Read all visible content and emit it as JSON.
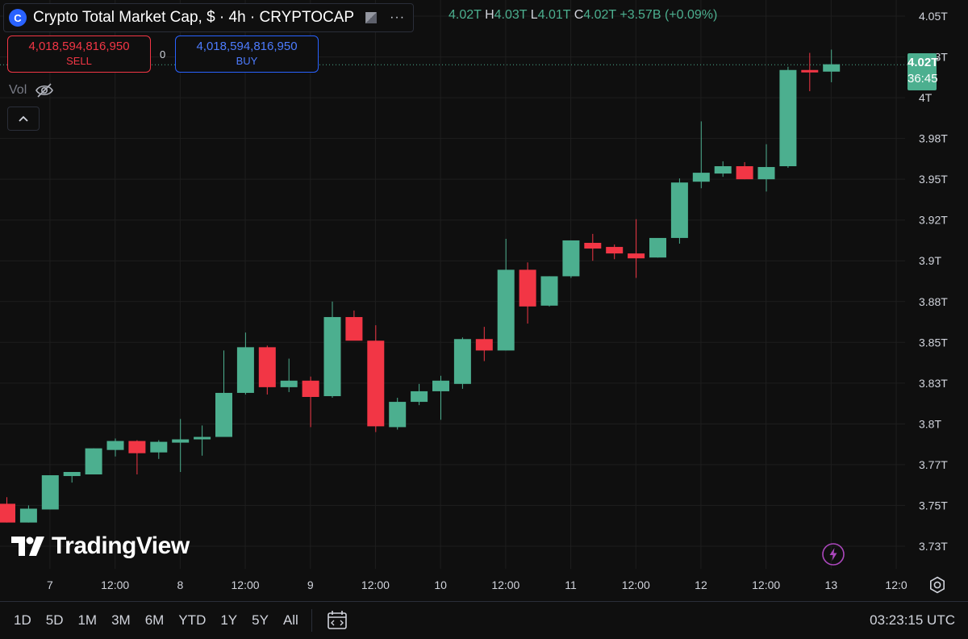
{
  "header": {
    "logo_glyph": "C",
    "title": "Crypto Total Market Cap, $ · 4h · CRYPTOCAP",
    "more_icon": "···",
    "ohlc": {
      "o_label": "",
      "o_value": "4.02T",
      "h_label": "H",
      "h_value": "4.03T",
      "l_label": "L",
      "l_value": "4.01T",
      "c_label": "C",
      "c_value": "4.02T",
      "change": "+3.57B (+0.09%)"
    }
  },
  "trading": {
    "sell_price": "4,018,594,816,950",
    "sell_label": "SELL",
    "spread": "0",
    "buy_price": "4,018,594,816,950",
    "buy_label": "BUY"
  },
  "indicators": {
    "vol_label": "Vol"
  },
  "price_tag": {
    "price": "4.02T",
    "countdown": "36:45"
  },
  "branding": {
    "name": "TradingView"
  },
  "bottom_bar": {
    "ranges": [
      "1D",
      "5D",
      "1M",
      "3M",
      "6M",
      "YTD",
      "1Y",
      "5Y",
      "All"
    ],
    "clock": "03:23:15 UTC"
  },
  "colors": {
    "up": "#4caf8f",
    "down": "#f23645",
    "background": "#0f0f0f",
    "buy": "#2962ff"
  },
  "chart_data": {
    "type": "candlestick",
    "title": "Crypto Total Market Cap, $ · 4h · CRYPTOCAP",
    "unit": "T",
    "y_ticks": [
      "4.05T",
      "4.03T",
      "4T",
      "3.98T",
      "3.95T",
      "3.92T",
      "3.9T",
      "3.88T",
      "3.85T",
      "3.83T",
      "3.8T",
      "3.77T",
      "3.75T",
      "3.73T"
    ],
    "y_tick_values": [
      4.05,
      4.025,
      4.0,
      3.975,
      3.95,
      3.925,
      3.9,
      3.875,
      3.85,
      3.825,
      3.8,
      3.775,
      3.75,
      3.725
    ],
    "ylim": [
      3.7225,
      4.0525
    ],
    "x_ticks": [
      "7",
      "12:00",
      "8",
      "12:00",
      "9",
      "12:00",
      "10",
      "12:00",
      "11",
      "12:00",
      "12",
      "12:00",
      "13",
      "12:0"
    ],
    "x_tick_slot": [
      0.5,
      3.5,
      6.5,
      9.5,
      12.5,
      15.5,
      18.5,
      21.5,
      24.5,
      27.5,
      30.5,
      33.5,
      36.5,
      39.5
    ],
    "last_price": 4.02,
    "grid": true,
    "candles": [
      {
        "o": 3.751,
        "h": 3.755,
        "l": 3.7395,
        "c": 3.7395
      },
      {
        "o": 3.7395,
        "h": 3.75,
        "l": 3.7395,
        "c": 3.748
      },
      {
        "o": 3.7475,
        "h": 3.768,
        "l": 3.7475,
        "c": 3.7685
      },
      {
        "o": 3.768,
        "h": 3.77,
        "l": 3.764,
        "c": 3.7705
      },
      {
        "o": 3.769,
        "h": 3.785,
        "l": 3.769,
        "c": 3.785
      },
      {
        "o": 3.784,
        "h": 3.791,
        "l": 3.78,
        "c": 3.7895
      },
      {
        "o": 3.7895,
        "h": 3.79,
        "l": 3.769,
        "c": 3.782
      },
      {
        "o": 3.7825,
        "h": 3.79,
        "l": 3.7785,
        "c": 3.789
      },
      {
        "o": 3.7885,
        "h": 3.803,
        "l": 3.7705,
        "c": 3.7905
      },
      {
        "o": 3.7905,
        "h": 3.799,
        "l": 3.7805,
        "c": 3.792
      },
      {
        "o": 3.792,
        "h": 3.845,
        "l": 3.792,
        "c": 3.819
      },
      {
        "o": 3.819,
        "h": 3.856,
        "l": 3.818,
        "c": 3.847
      },
      {
        "o": 3.847,
        "h": 3.848,
        "l": 3.818,
        "c": 3.8225
      },
      {
        "o": 3.8225,
        "h": 3.84,
        "l": 3.8195,
        "c": 3.8265
      },
      {
        "o": 3.8265,
        "h": 3.829,
        "l": 3.798,
        "c": 3.8165
      },
      {
        "o": 3.817,
        "h": 3.875,
        "l": 3.816,
        "c": 3.8655
      },
      {
        "o": 3.8655,
        "h": 3.8695,
        "l": 3.8515,
        "c": 3.851
      },
      {
        "o": 3.851,
        "h": 3.8605,
        "l": 3.795,
        "c": 3.7985
      },
      {
        "o": 3.798,
        "h": 3.816,
        "l": 3.7965,
        "c": 3.8135
      },
      {
        "o": 3.8135,
        "h": 3.8245,
        "l": 3.8115,
        "c": 3.82
      },
      {
        "o": 3.82,
        "h": 3.8295,
        "l": 3.8025,
        "c": 3.8265
      },
      {
        "o": 3.8245,
        "h": 3.853,
        "l": 3.8215,
        "c": 3.852
      },
      {
        "o": 3.852,
        "h": 3.8595,
        "l": 3.8385,
        "c": 3.845
      },
      {
        "o": 3.845,
        "h": 3.9135,
        "l": 3.845,
        "c": 3.8945
      },
      {
        "o": 3.8945,
        "h": 3.899,
        "l": 3.8615,
        "c": 3.872
      },
      {
        "o": 3.8725,
        "h": 3.8905,
        "l": 3.872,
        "c": 3.8905
      },
      {
        "o": 3.8905,
        "h": 3.9125,
        "l": 3.8895,
        "c": 3.9125
      },
      {
        "o": 3.911,
        "h": 3.9165,
        "l": 3.9,
        "c": 3.9075
      },
      {
        "o": 3.9085,
        "h": 3.91,
        "l": 3.901,
        "c": 3.9045
      },
      {
        "o": 3.9045,
        "h": 3.9255,
        "l": 3.8895,
        "c": 3.9015
      },
      {
        "o": 3.902,
        "h": 3.914,
        "l": 3.902,
        "c": 3.914
      },
      {
        "o": 3.914,
        "h": 3.9505,
        "l": 3.9105,
        "c": 3.948
      },
      {
        "o": 3.9485,
        "h": 3.9855,
        "l": 3.9445,
        "c": 3.954
      },
      {
        "o": 3.9535,
        "h": 3.961,
        "l": 3.9515,
        "c": 3.958
      },
      {
        "o": 3.958,
        "h": 3.9605,
        "l": 3.95,
        "c": 3.95
      },
      {
        "o": 3.95,
        "h": 3.9715,
        "l": 3.9425,
        "c": 3.9575
      },
      {
        "o": 3.958,
        "h": 4.019,
        "l": 3.957,
        "c": 4.017
      },
      {
        "o": 4.017,
        "h": 4.0275,
        "l": 4.004,
        "c": 4.0155
      },
      {
        "o": 4.016,
        "h": 4.0295,
        "l": 4.0095,
        "c": 4.0205
      }
    ]
  }
}
